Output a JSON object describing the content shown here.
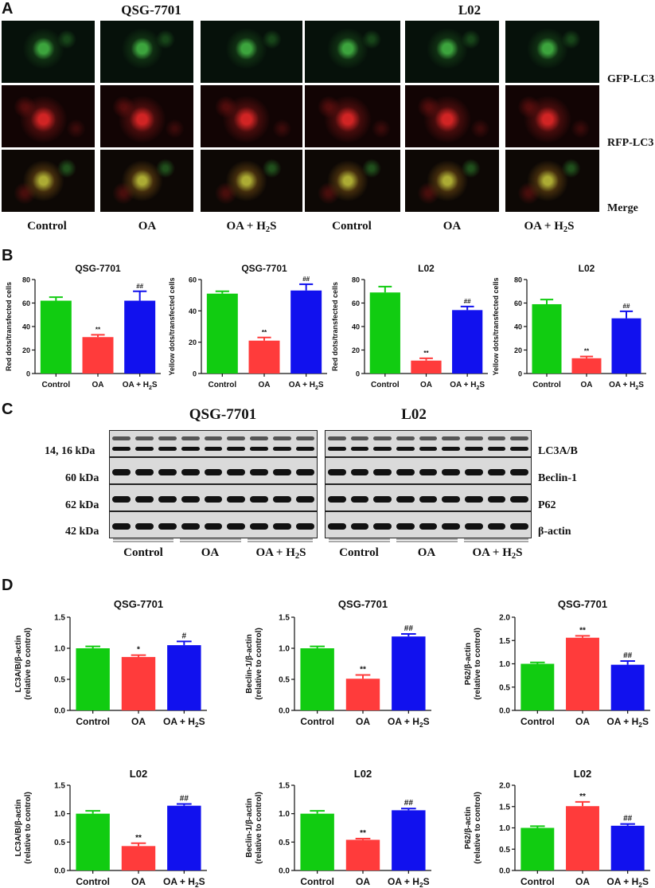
{
  "colors": {
    "control": "#11cc11",
    "oa": "#ff3b3b",
    "oa_h2s": "#1111ee"
  },
  "panel_a": {
    "label": "A",
    "cell_lines": [
      "QSG-7701",
      "L02"
    ],
    "row_labels": [
      "GFP-LC3",
      "RFP-LC3",
      "Merge"
    ],
    "column_labels": [
      "Control",
      "OA",
      "OA + H",
      "2",
      "S",
      "Control",
      "OA",
      "OA + H",
      "2",
      "S"
    ]
  },
  "panel_b": {
    "label": "B"
  },
  "panel_c": {
    "label": "C",
    "cell_lines": [
      "QSG-7701",
      "L02"
    ],
    "kda_labels": [
      "14, 16 kDa",
      "60 kDa",
      "62 kDa",
      "42 kDa"
    ],
    "proteins": [
      "LC3A/B",
      "Beclin-1",
      "P62",
      "β-actin"
    ],
    "group_labels": [
      "Control",
      "OA",
      "OA + H",
      "2",
      "S",
      "Control",
      "OA",
      "OA + H",
      "2",
      "S"
    ]
  },
  "panel_d": {
    "label": "D"
  },
  "chart_data": [
    {
      "type": "bar",
      "title": "QSG-7701",
      "ylabel": "Red dots/transfected cells",
      "categories": [
        "Control",
        "OA",
        "OA + H2S"
      ],
      "values": [
        62,
        31,
        62
      ],
      "errors": [
        3,
        2,
        8
      ],
      "annotations": [
        "",
        "**",
        "##"
      ],
      "ylim": [
        0,
        80
      ],
      "yticks": [
        "0",
        "20",
        "40",
        "60",
        "80"
      ]
    },
    {
      "type": "bar",
      "title": "QSG-7701",
      "ylabel": "Yellow dots/transfected cells",
      "categories": [
        "Control",
        "OA",
        "OA + H2S"
      ],
      "values": [
        51,
        21,
        53
      ],
      "errors": [
        1.5,
        2,
        4
      ],
      "annotations": [
        "",
        "**",
        "##"
      ],
      "ylim": [
        0,
        60
      ],
      "yticks": [
        "0",
        "20",
        "40",
        "60"
      ]
    },
    {
      "type": "bar",
      "title": "L02",
      "ylabel": "Red dots/transfected cells",
      "categories": [
        "Control",
        "OA",
        "OA + H2S"
      ],
      "values": [
        69,
        11,
        54
      ],
      "errors": [
        5,
        2,
        3
      ],
      "annotations": [
        "",
        "**",
        "##"
      ],
      "ylim": [
        0,
        80
      ],
      "yticks": [
        "0",
        "20",
        "40",
        "60",
        "80"
      ]
    },
    {
      "type": "bar",
      "title": "L02",
      "ylabel": "Yellow dots/transfected cells",
      "categories": [
        "Control",
        "OA",
        "OA + H2S"
      ],
      "values": [
        59,
        13,
        47
      ],
      "errors": [
        4,
        1.5,
        6
      ],
      "annotations": [
        "",
        "**",
        "##"
      ],
      "ylim": [
        0,
        80
      ],
      "yticks": [
        "0",
        "20",
        "40",
        "60",
        "80"
      ]
    },
    {
      "type": "bar",
      "title": "QSG-7701",
      "ylabel": [
        "LC3A/B/β-actin",
        "(relative to control)"
      ],
      "categories": [
        "Control",
        "OA",
        "OA + H2S"
      ],
      "values": [
        1.0,
        0.86,
        1.05
      ],
      "errors": [
        0.03,
        0.03,
        0.06
      ],
      "annotations": [
        "",
        "*",
        "#"
      ],
      "ylim": [
        0,
        1.5
      ],
      "yticks": [
        "0.0",
        "0.5",
        "1.0",
        "1.5"
      ]
    },
    {
      "type": "bar",
      "title": "QSG-7701",
      "ylabel": [
        "Beclin-1/β-actin",
        "(relative to control)"
      ],
      "categories": [
        "Control",
        "OA",
        "OA + H2S"
      ],
      "values": [
        1.0,
        0.51,
        1.19
      ],
      "errors": [
        0.03,
        0.06,
        0.04
      ],
      "annotations": [
        "",
        "**",
        "##"
      ],
      "ylim": [
        0,
        1.5
      ],
      "yticks": [
        "0.0",
        "0.5",
        "1.0",
        "1.5"
      ]
    },
    {
      "type": "bar",
      "title": "QSG-7701",
      "ylabel": [
        "P62/β-actin",
        "(relative to control)"
      ],
      "categories": [
        "Control",
        "OA",
        "OA + H2S"
      ],
      "values": [
        1.0,
        1.56,
        0.98
      ],
      "errors": [
        0.03,
        0.04,
        0.08
      ],
      "annotations": [
        "",
        "**",
        "##"
      ],
      "ylim": [
        0,
        2.0
      ],
      "yticks": [
        "0.0",
        "0.5",
        "1.0",
        "1.5",
        "2.0"
      ]
    },
    {
      "type": "bar",
      "title": "L02",
      "ylabel": [
        "LC3A/B/β-actin",
        "(relative to control)"
      ],
      "categories": [
        "Control",
        "OA",
        "OA + H2S"
      ],
      "values": [
        1.0,
        0.43,
        1.14
      ],
      "errors": [
        0.05,
        0.05,
        0.03
      ],
      "annotations": [
        "",
        "**",
        "##"
      ],
      "ylim": [
        0,
        1.5
      ],
      "yticks": [
        "0.0",
        "0.5",
        "1.0",
        "1.5"
      ]
    },
    {
      "type": "bar",
      "title": "L02",
      "ylabel": [
        "Beclin-1/β-actin",
        "(relative to control)"
      ],
      "categories": [
        "Control",
        "OA",
        "OA + H2S"
      ],
      "values": [
        1.0,
        0.54,
        1.06
      ],
      "errors": [
        0.05,
        0.02,
        0.03
      ],
      "annotations": [
        "",
        "**",
        "##"
      ],
      "ylim": [
        0,
        1.5
      ],
      "yticks": [
        "0.0",
        "0.5",
        "1.0",
        "1.5"
      ]
    },
    {
      "type": "bar",
      "title": "L02",
      "ylabel": [
        "P62/β-actin",
        "(relative to control)"
      ],
      "categories": [
        "Control",
        "OA",
        "OA + H2S"
      ],
      "values": [
        1.0,
        1.51,
        1.05
      ],
      "errors": [
        0.04,
        0.1,
        0.04
      ],
      "annotations": [
        "",
        "**",
        "##"
      ],
      "ylim": [
        0,
        2.0
      ],
      "yticks": [
        "0.0",
        "0.5",
        "1.0",
        "1.5",
        "2.0"
      ]
    }
  ]
}
